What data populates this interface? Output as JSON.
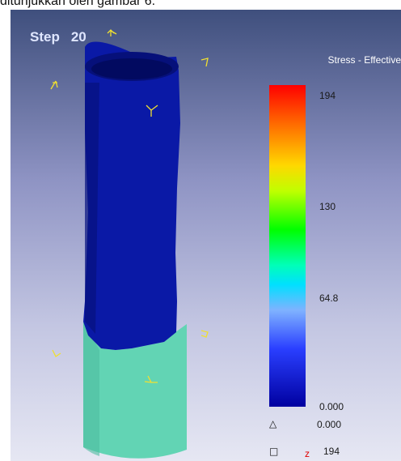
{
  "caption": "ditunjukkan oleh gambar 6.",
  "viewer": {
    "step_label": "Step",
    "step_value": "20"
  },
  "legend": {
    "title": "Stress - Effective",
    "ticks": [
      "194",
      "130",
      "64.8",
      "0.000"
    ],
    "min_label": "0.000",
    "max_label": "194",
    "z_label": "z"
  },
  "colors": {
    "upper_tube": "#0a19a6",
    "lower_tube": "#62d4b4",
    "axis_marker": "#f0e030"
  },
  "icons": [
    "triangle-icon",
    "square-icon",
    "axis-marker-icon"
  ]
}
